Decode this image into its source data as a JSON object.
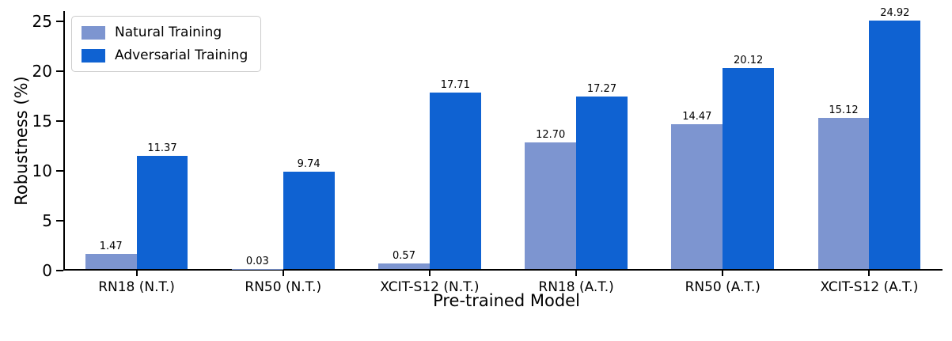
{
  "chart_data": {
    "type": "bar",
    "title": "",
    "xlabel": "Pre-trained Model",
    "ylabel": "Robustness (%)",
    "categories": [
      "RN18 (N.T.)",
      "RN50 (N.T.)",
      "XCIT-S12 (N.T.)",
      "RN18 (A.T.)",
      "RN50 (A.T.)",
      "XCIT-S12 (A.T.)"
    ],
    "series": [
      {
        "name": "Natural Training",
        "color": "#7d95d0",
        "values": [
          1.47,
          0.03,
          0.57,
          12.7,
          14.47,
          15.12
        ]
      },
      {
        "name": "Adversarial Training",
        "color": "#0f62d2",
        "values": [
          11.37,
          9.74,
          17.71,
          17.27,
          20.12,
          24.92
        ]
      }
    ],
    "y_ticks": [
      0,
      5,
      10,
      15,
      20,
      25
    ],
    "ylim": [
      0,
      26
    ],
    "grid": false,
    "legend_position": "upper left",
    "bar_group_width": 0.35
  }
}
